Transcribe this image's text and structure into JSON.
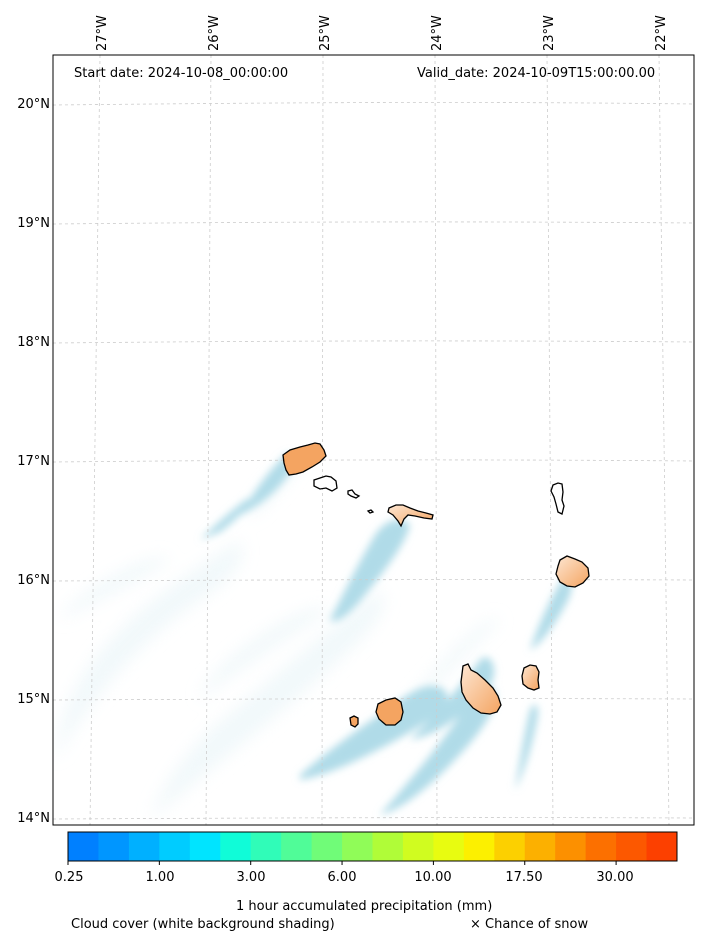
{
  "header": {
    "start_date": "Start date: 2024-10-08_00:00:00",
    "valid_date": "Valid_date: 2024-10-09T15:00:00.00"
  },
  "longitude_labels": [
    "27°W",
    "26°W",
    "25°W",
    "24°W",
    "23°W",
    "22°W"
  ],
  "latitude_labels": [
    "20°N",
    "19°N",
    "18°N",
    "17°N",
    "16°N",
    "15°N",
    "14°N"
  ],
  "colorbar": {
    "tick_labels": [
      "0.25",
      "1.00",
      "3.00",
      "6.00",
      "10.00",
      "17.50",
      "30.00"
    ],
    "colors": [
      "#0080ff",
      "#0096ff",
      "#00b0ff",
      "#00ccff",
      "#00e4ff",
      "#10fcd8",
      "#30fcb8",
      "#50fc98",
      "#70fc78",
      "#90fc58",
      "#b0fc38",
      "#d0fc20",
      "#e8fc10",
      "#fcf000",
      "#fcd000",
      "#fcb000",
      "#fc9000",
      "#fc7000",
      "#fc5800",
      "#fc4000"
    ],
    "label": "1 hour accumulated precipitation (mm)"
  },
  "footer": {
    "cloud_cover": "Cloud cover (white background shading)",
    "snow": "× Chance of snow"
  },
  "map": {
    "land_color": "#f4a461",
    "cloud_color": "#b0dbe8",
    "grid": "dashed",
    "islands": [
      "Santo Antão",
      "São Vicente",
      "Santa Luzia",
      "São Nicolau",
      "Sal",
      "Boa Vista",
      "Maio",
      "Santiago",
      "Fogo",
      "Brava"
    ]
  }
}
